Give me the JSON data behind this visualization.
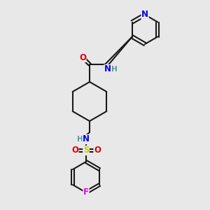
{
  "bg_color": "#e8e8e8",
  "bond_color": "#1a1a1a",
  "atom_colors": {
    "N": "#0000ee",
    "O": "#dd0000",
    "S": "#cccc00",
    "F": "#ee00ee",
    "H": "#559999"
  },
  "lw": 1.5,
  "fs": 8.5,
  "figsize": [
    3.0,
    3.0
  ],
  "dpi": 100
}
